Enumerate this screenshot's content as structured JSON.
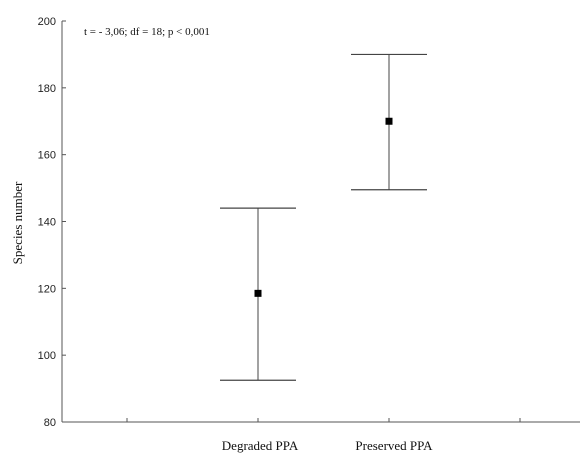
{
  "chart_data": {
    "type": "scatter",
    "title": "",
    "annotation": "t = - 3,06; df = 18; p < 0,001",
    "xlabel": "",
    "ylabel": "Species number",
    "categories": [
      "Degraded PPA",
      "Preserved PPA"
    ],
    "series": [
      {
        "values": [
          118.5,
          170
        ],
        "lower": [
          92.5,
          149.5
        ],
        "upper": [
          144,
          190
        ]
      }
    ],
    "ylim": [
      80,
      200
    ],
    "yticks": [
      80,
      100,
      120,
      140,
      160,
      180,
      200
    ],
    "grid": false,
    "legend": "none"
  }
}
